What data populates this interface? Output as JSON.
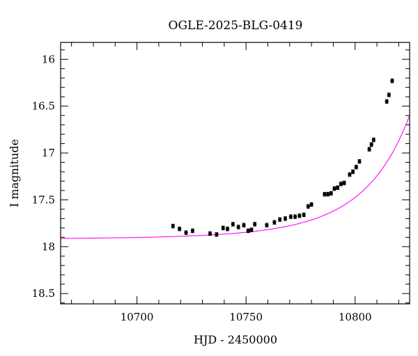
{
  "chart_data": {
    "type": "scatter",
    "title": "OGLE-2025-BLG-0419",
    "xlabel": "HJD - 2450000",
    "ylabel": "I magnitude",
    "xlim": [
      10665,
      10825
    ],
    "ylim": [
      15.82,
      18.61
    ],
    "y_inverted": true,
    "grid": false,
    "x_ticks": [
      10700,
      10750,
      10800
    ],
    "y_ticks": [
      16,
      16.5,
      17,
      17.5,
      18,
      18.5
    ],
    "x_tick_labels": [
      "10700",
      "10750",
      "10800"
    ],
    "y_tick_labels": [
      "16",
      "16.5",
      "17",
      "17.5",
      "18",
      "18.5"
    ],
    "colors": {
      "model": "#ff00ff",
      "points": "#000000",
      "axes": "#000000"
    },
    "series": [
      {
        "kind": "points",
        "x": [
          10716.5,
          10719.5,
          10722.5,
          10725.5,
          10733.5,
          10736.5,
          10739.5,
          10741.5,
          10744,
          10746.5,
          10749,
          10751,
          10752.5,
          10754,
          10759.5,
          10763,
          10765.5,
          10768,
          10770.5,
          10772.5,
          10774.5,
          10776.5,
          10778.5,
          10780,
          10786,
          10787.5,
          10789,
          10790.5,
          10792,
          10793.5,
          10795,
          10797.5,
          10799,
          10800.5,
          10802,
          10806.5,
          10807.5,
          10808.5,
          10814.5,
          10815.5,
          10817
        ],
        "y": [
          17.78,
          17.81,
          17.85,
          17.83,
          17.86,
          17.87,
          17.8,
          17.81,
          17.76,
          17.79,
          17.77,
          17.83,
          17.82,
          17.76,
          17.77,
          17.74,
          17.71,
          17.7,
          17.68,
          17.68,
          17.67,
          17.66,
          17.57,
          17.55,
          17.44,
          17.44,
          17.43,
          17.38,
          17.37,
          17.33,
          17.32,
          17.23,
          17.2,
          17.15,
          17.09,
          16.96,
          16.91,
          16.86,
          16.45,
          16.38,
          16.23
        ],
        "y_err": 0.02
      },
      {
        "kind": "model",
        "t0": 10837,
        "tE": 46,
        "u0": 0.16,
        "I_base": 17.92
      }
    ]
  }
}
